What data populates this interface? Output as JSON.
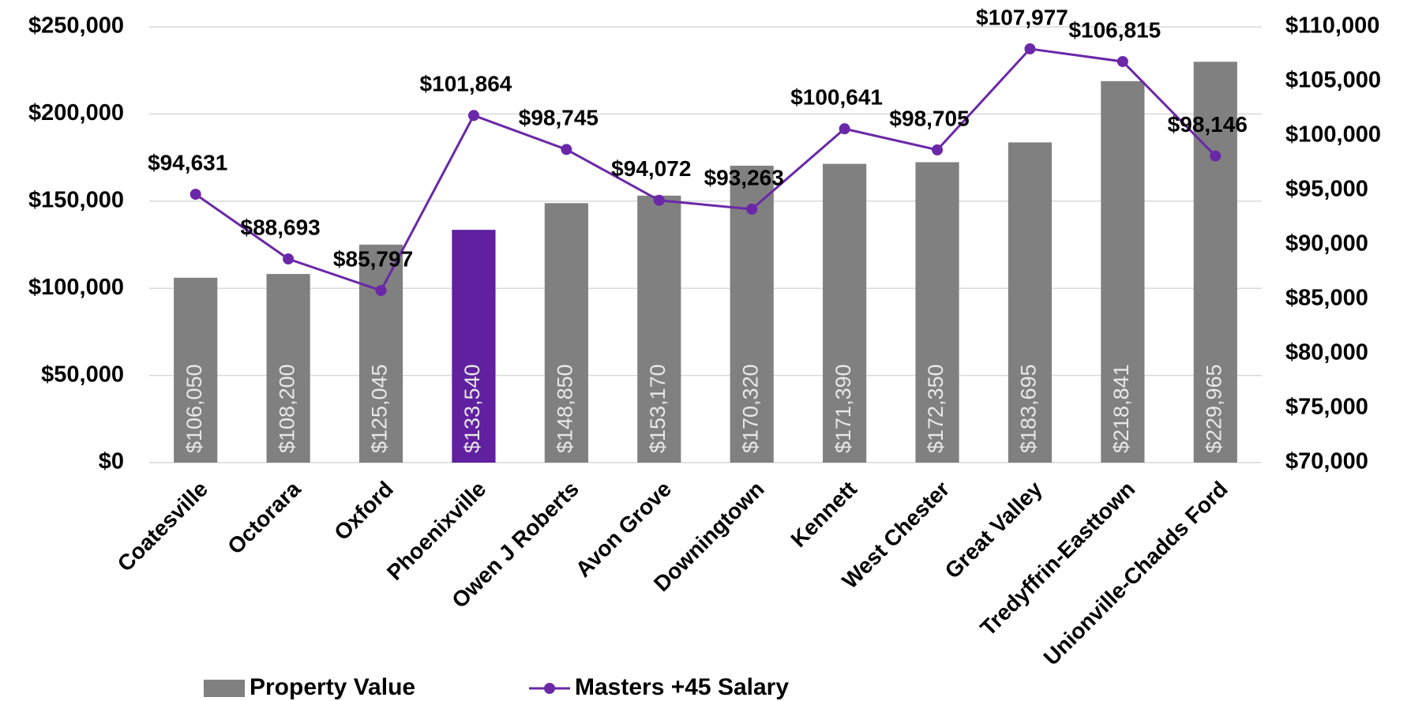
{
  "chart_data": {
    "type": "bar-line",
    "categories": [
      "Coatesville",
      "Octorara",
      "Oxford",
      "Phoenixville",
      "Owen J Roberts",
      "Avon Grove",
      "Downingtown",
      "Kennett",
      "West Chester",
      "Great Valley",
      "Tredyffrin-Easttown",
      "Unionville-Chadds Ford"
    ],
    "series": [
      {
        "name": "Property Value",
        "type": "bar",
        "color": "#808080",
        "colors": [
          "#808080",
          "#808080",
          "#808080",
          "#6020a0",
          "#808080",
          "#808080",
          "#808080",
          "#808080",
          "#808080",
          "#808080",
          "#808080",
          "#808080"
        ],
        "values": [
          106050,
          108200,
          125045,
          133540,
          148850,
          153170,
          170320,
          171390,
          172350,
          183695,
          218841,
          229965
        ],
        "value_labels": [
          "$106,050",
          "$108,200",
          "$125,045",
          "$133,540",
          "$148,850",
          "$153,170",
          "$170,320",
          "$171,390",
          "$172,350",
          "$183,695",
          "$218,841",
          "$229,965"
        ]
      },
      {
        "name": "Masters +45 Salary",
        "type": "line",
        "axis": "y2",
        "color": "#6a28a8",
        "values": [
          94631,
          88693,
          85797,
          101864,
          98745,
          94072,
          93263,
          100641,
          98705,
          107977,
          106815,
          98146
        ],
        "value_labels": [
          "$94,631",
          "$88,693",
          "$85,797",
          "$101,864",
          "$98,745",
          "$94,072",
          "$93,263",
          "$100,641",
          "$98,705",
          "$107,977",
          "$106,815",
          "$98,146"
        ]
      }
    ],
    "ylim": [
      0,
      250000
    ],
    "yticks": [
      {
        "value": 0,
        "label": "$0"
      },
      {
        "value": 50000,
        "label": "$50,000"
      },
      {
        "value": 100000,
        "label": "$100,000"
      },
      {
        "value": 150000,
        "label": "$150,000"
      },
      {
        "value": 200000,
        "label": "$200,000"
      },
      {
        "value": 250000,
        "label": "$250,000"
      }
    ],
    "y2lim": [
      70000,
      110000
    ],
    "y2ticks": [
      {
        "value": 70000,
        "label": "$70,000"
      },
      {
        "value": 75000,
        "label": "$75,000"
      },
      {
        "value": 80000,
        "label": "$80,000"
      },
      {
        "value": 85000,
        "label": "$85,000"
      },
      {
        "value": 90000,
        "label": "$90,000"
      },
      {
        "value": 95000,
        "label": "$95,000"
      },
      {
        "value": 100000,
        "label": "$100,000"
      },
      {
        "value": 105000,
        "label": "$105,000"
      },
      {
        "value": 110000,
        "label": "$110,000"
      }
    ],
    "grid": true,
    "legend": "bottom"
  }
}
